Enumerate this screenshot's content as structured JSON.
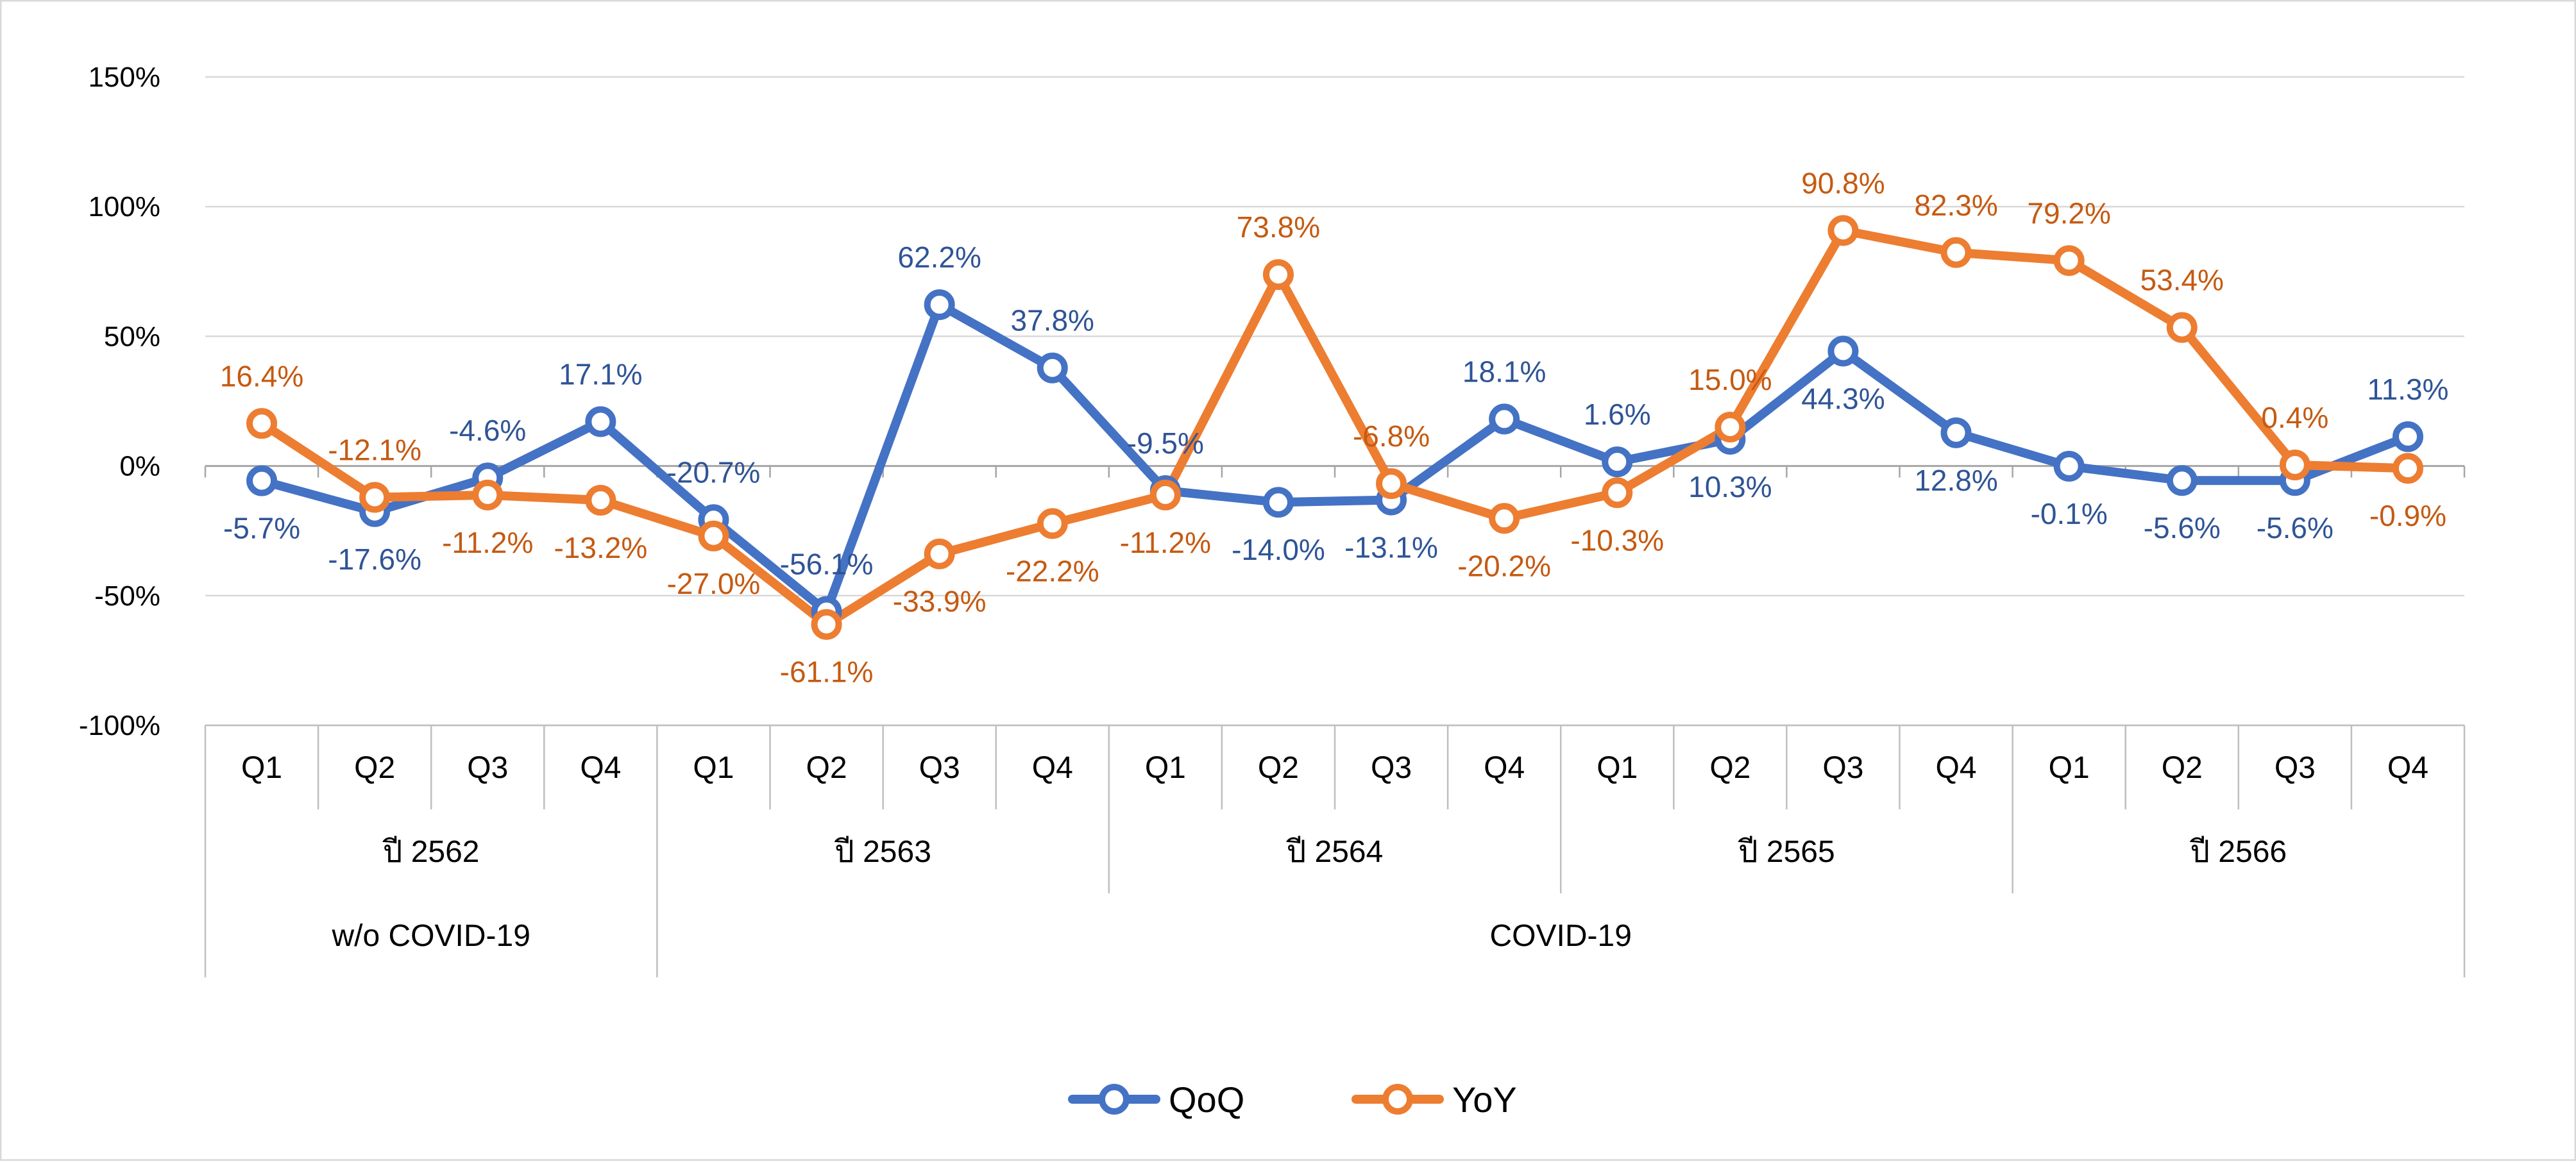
{
  "chart_data": {
    "type": "line",
    "y_unit": "%",
    "ylim": [
      -100,
      150
    ],
    "y_ticks": [
      150,
      100,
      50,
      0,
      -50,
      -100
    ],
    "y_tick_labels": [
      "150%",
      "100%",
      "50%",
      "0%",
      "-50%",
      "-100%"
    ],
    "grid": true,
    "legend_position": "bottom",
    "categories": [
      "Q1",
      "Q2",
      "Q3",
      "Q4",
      "Q1",
      "Q2",
      "Q3",
      "Q4",
      "Q1",
      "Q2",
      "Q3",
      "Q4",
      "Q1",
      "Q2",
      "Q3",
      "Q4",
      "Q1",
      "Q2",
      "Q3",
      "Q4"
    ],
    "year_groups": [
      {
        "label": "ปี 2562",
        "count": 4
      },
      {
        "label": "ปี 2563",
        "count": 4
      },
      {
        "label": "ปี 2564",
        "count": 4
      },
      {
        "label": "ปี 2565",
        "count": 4
      },
      {
        "label": "ปี 2566",
        "count": 4
      }
    ],
    "period_groups": [
      {
        "label": "w/o COVID-19",
        "count": 4
      },
      {
        "label": "COVID-19",
        "count": 16
      }
    ],
    "series": [
      {
        "name": "QoQ",
        "color": "#4472C4",
        "label_color": "#2F5496",
        "values": [
          -5.7,
          -17.6,
          -4.6,
          17.1,
          -20.7,
          -56.1,
          62.2,
          37.8,
          -9.5,
          -14.0,
          -13.1,
          18.1,
          1.6,
          10.3,
          44.3,
          12.8,
          -0.1,
          -5.6,
          -5.6,
          11.3
        ],
        "labels": [
          "-5.7%",
          "-17.6%",
          "-4.6%",
          "17.1%",
          "-20.7%",
          "-56.1%",
          "62.2%",
          "37.8%",
          "-9.5%",
          "-14.0%",
          "-13.1%",
          "18.1%",
          "1.6%",
          "10.3%",
          "44.3%",
          "12.8%",
          "-0.1%",
          "-5.6%",
          "-5.6%",
          "11.3%"
        ]
      },
      {
        "name": "YoY",
        "color": "#ED7D31",
        "label_color": "#C55A11",
        "values": [
          16.4,
          -12.1,
          -11.2,
          -13.2,
          -27.0,
          -61.1,
          -33.9,
          -22.2,
          -11.2,
          73.8,
          -6.8,
          -20.2,
          -10.3,
          15.0,
          90.8,
          82.3,
          79.2,
          53.4,
          0.4,
          -0.9
        ],
        "labels": [
          "16.4%",
          "-12.1%",
          "-11.2%",
          "-13.2%",
          "-27.0%",
          "-61.1%",
          "-33.9%",
          "-22.2%",
          "-11.2%",
          "73.8%",
          "-6.8%",
          "-20.2%",
          "-10.3%",
          "15.0%",
          "90.8%",
          "82.3%",
          "79.2%",
          "53.4%",
          "0.4%",
          "-0.9%"
        ]
      }
    ]
  },
  "colors": {
    "grid": "#D9D9D9",
    "axis": "#BFBFBF",
    "border": "#D9D9D9"
  }
}
